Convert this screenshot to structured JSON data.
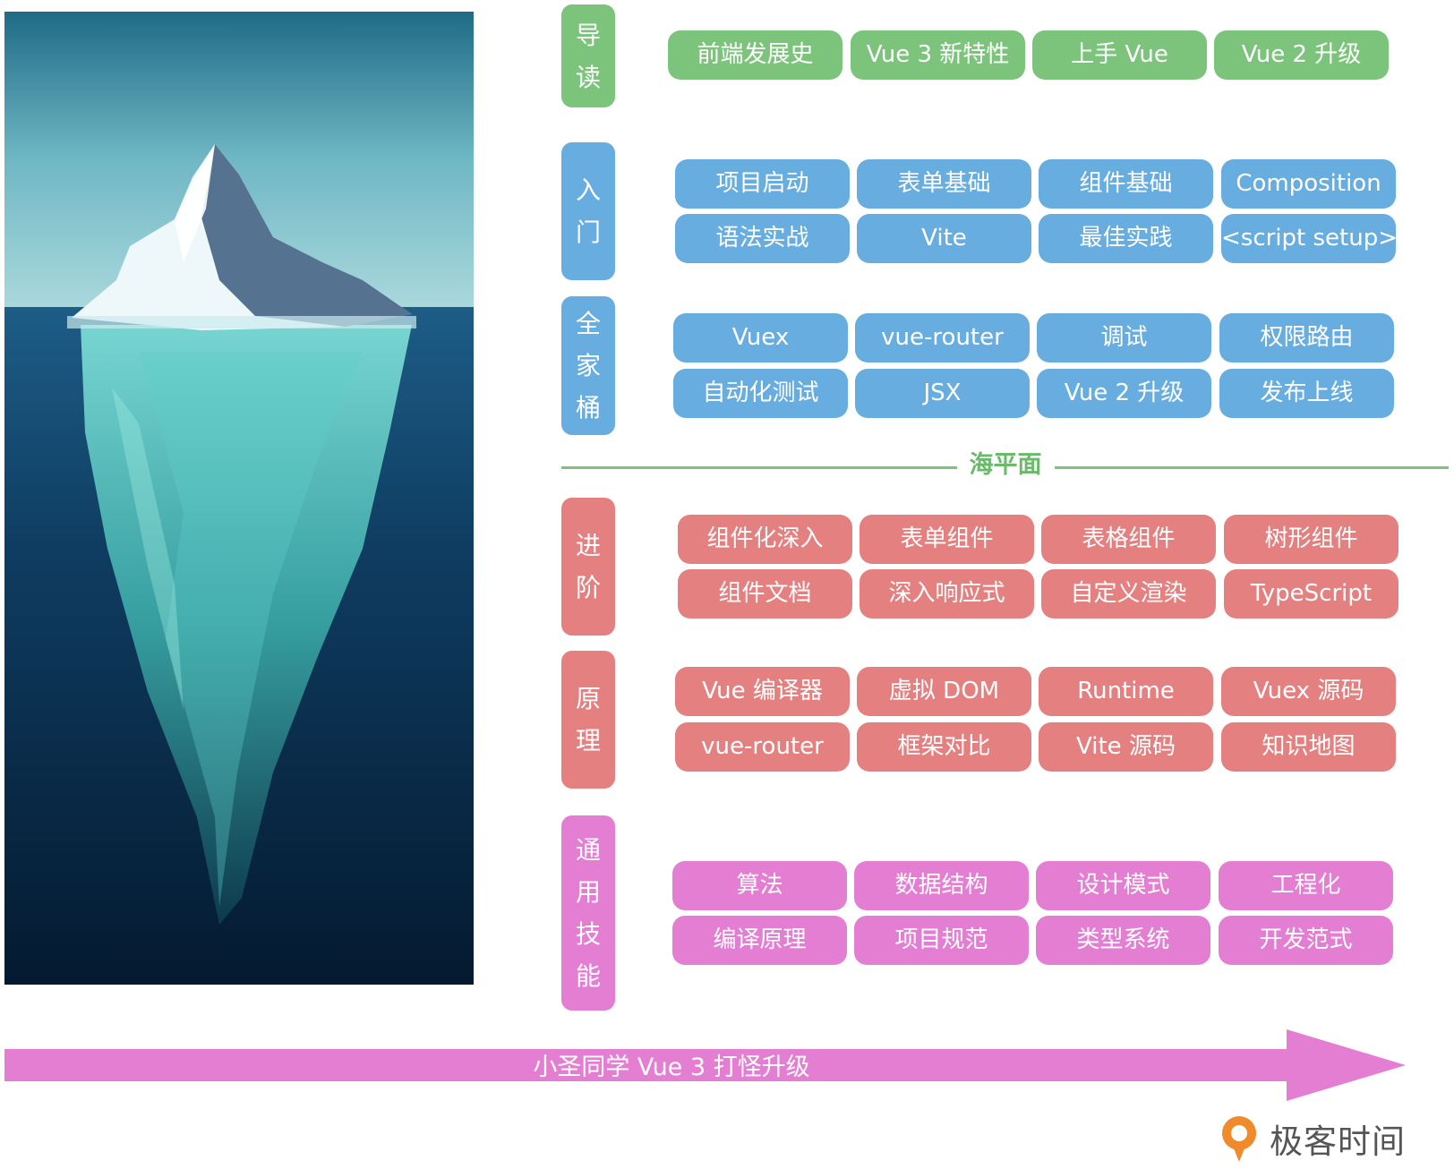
{
  "sea_level": "海平面",
  "arrow_caption": "小圣同学 Vue 3 打怪升级",
  "brand": {
    "name": "极客时间"
  },
  "colors": {
    "green": "#7cc47c",
    "blue": "#68ade0",
    "red": "#e58080",
    "pink": "#e47ed3"
  },
  "categories": [
    {
      "label": "导读",
      "color": "green",
      "items": [
        "前端发展史",
        "Vue 3 新特性",
        "上手 Vue",
        "Vue 2 升级"
      ]
    },
    {
      "label": "入门",
      "color": "blue",
      "items": [
        "项目启动",
        "表单基础",
        "组件基础",
        "Composition",
        "语法实战",
        "Vite",
        "最佳实践",
        "<script setup>"
      ]
    },
    {
      "label": "全家桶",
      "color": "blue",
      "items": [
        "Vuex",
        "vue-router",
        "调试",
        "权限路由",
        "自动化测试",
        "JSX",
        "Vue 2 升级",
        "发布上线"
      ]
    },
    {
      "label": "进阶",
      "color": "red",
      "items": [
        "组件化深入",
        "表单组件",
        "表格组件",
        "树形组件",
        "组件文档",
        "深入响应式",
        "自定义渲染",
        "TypeScript"
      ]
    },
    {
      "label": "原理",
      "color": "red",
      "items": [
        "Vue 编译器",
        "虚拟 DOM",
        "Runtime",
        "Vuex 源码",
        "vue-router",
        "框架对比",
        "Vite 源码",
        "知识地图"
      ]
    },
    {
      "label": "通用技能",
      "color": "pink",
      "items": [
        "算法",
        "数据结构",
        "设计模式",
        "工程化",
        "编译原理",
        "项目规范",
        "类型系统",
        "开发范式"
      ]
    }
  ]
}
